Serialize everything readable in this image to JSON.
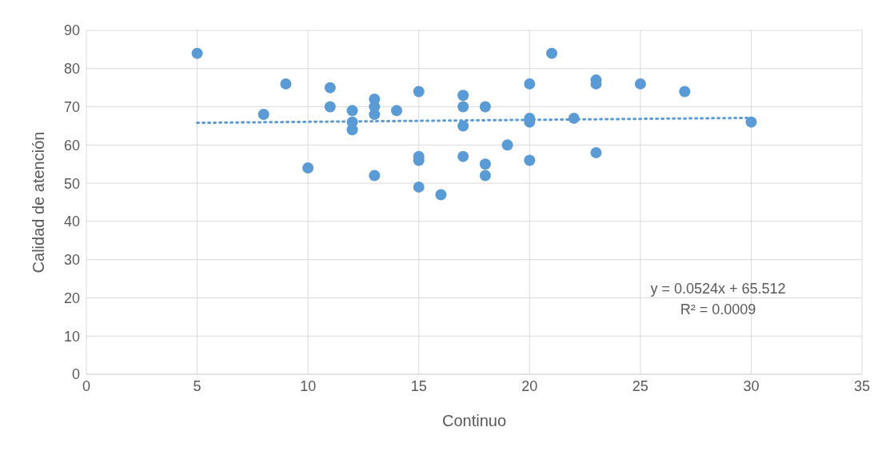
{
  "chart_data": {
    "type": "scatter",
    "xlabel": "Continuo",
    "ylabel": "Calidad de atención",
    "xlim": [
      0,
      35
    ],
    "xticks": [
      0,
      5,
      10,
      15,
      20,
      25,
      30,
      35
    ],
    "ylim": [
      0,
      90
    ],
    "yticks": [
      0,
      10,
      20,
      30,
      40,
      50,
      60,
      70,
      80,
      90
    ],
    "grid": true,
    "marker": "circle",
    "series": [
      {
        "color": "#5b9bd5",
        "x": [
          5,
          8,
          9,
          10,
          11,
          11,
          12,
          12,
          12,
          13,
          13,
          13,
          13,
          14,
          15,
          15,
          15,
          15,
          16,
          17,
          17,
          17,
          17,
          18,
          18,
          18,
          19,
          20,
          20,
          20,
          20,
          21,
          22,
          23,
          23,
          23,
          25,
          27,
          30
        ],
        "values": [
          84,
          68,
          76,
          54,
          75,
          70,
          69,
          66,
          64,
          72,
          70,
          68,
          52,
          69,
          74,
          57,
          56,
          49,
          47,
          73,
          70,
          65,
          57,
          70,
          55,
          52,
          60,
          76,
          67,
          66,
          56,
          84,
          67,
          77,
          76,
          58,
          76,
          74,
          66
        ]
      },
      {
        "type": "line",
        "color": "#5b9bd5",
        "line_style": "dotted",
        "marker": "none",
        "x": [
          5,
          30
        ],
        "values": [
          65.8,
          67.1
        ]
      }
    ],
    "annotations": [
      "y = 0.0524x + 65.512",
      "R² = 0.0009"
    ]
  }
}
